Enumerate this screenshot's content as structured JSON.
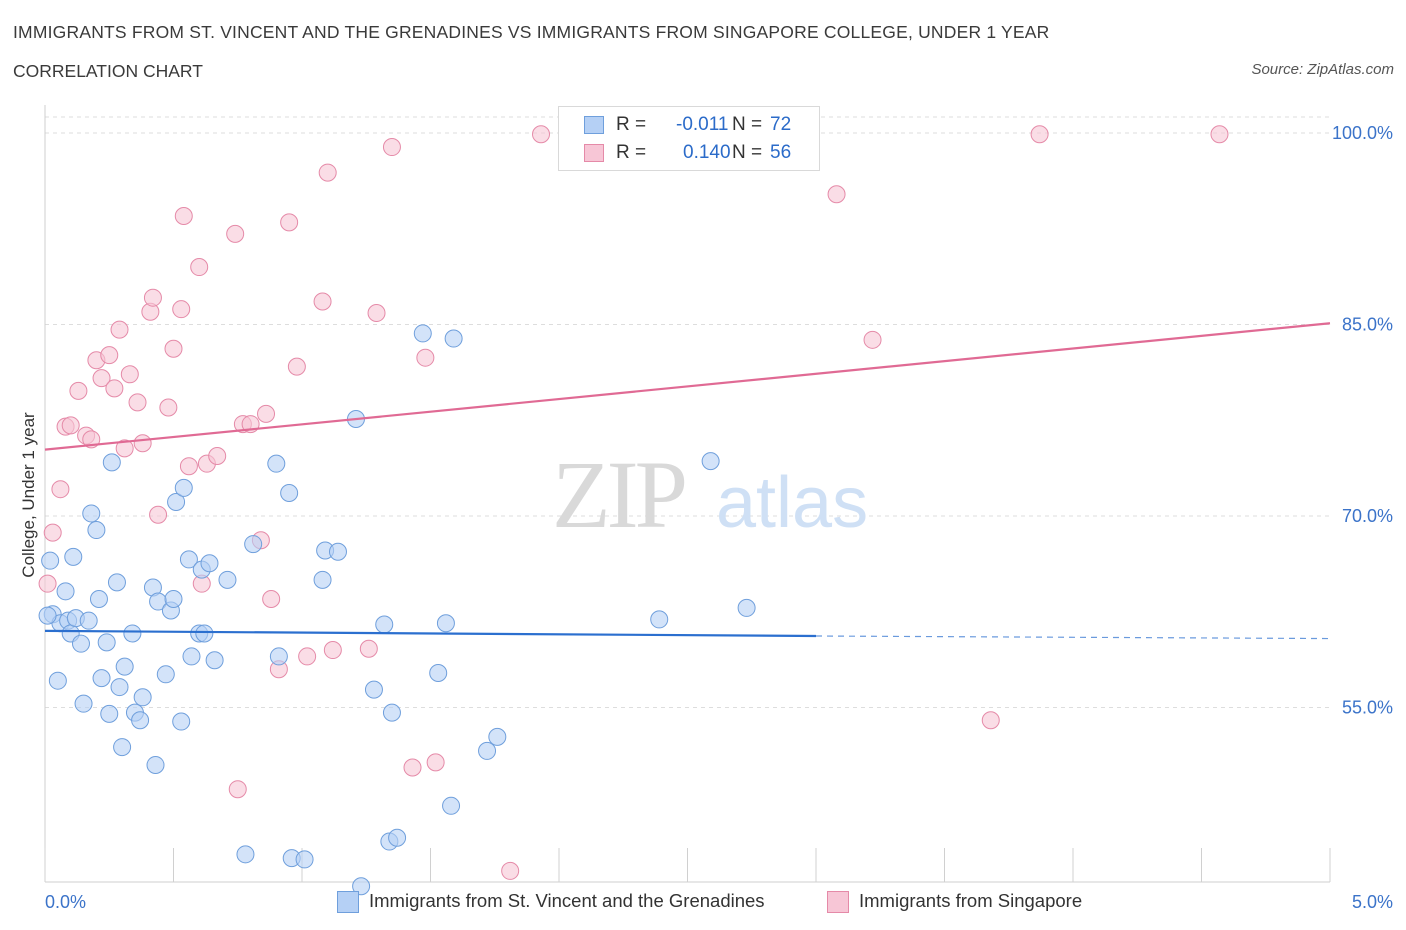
{
  "header": {
    "title": "IMMIGRANTS FROM ST. VINCENT AND THE GRENADINES VS IMMIGRANTS FROM SINGAPORE COLLEGE, UNDER 1 YEAR",
    "subtitle": "CORRELATION CHART",
    "source": "Source: ZipAtlas.com"
  },
  "legend": {
    "r_label": "R =",
    "n_label": "N =",
    "blue": {
      "r": "-0.011",
      "n": "72"
    },
    "pink": {
      "r": "0.140",
      "n": "56"
    }
  },
  "watermark": {
    "zip": "ZIP",
    "atlas": "atlas"
  },
  "colors": {
    "blue_fill": "#b5d0f5",
    "blue_stroke": "#6f9fdc",
    "blue_line": "#2b6fcf",
    "pink_fill": "#f7c6d6",
    "pink_stroke": "#e58aa8",
    "pink_line": "#e06a94",
    "axis_label": "#3b73c9",
    "grid": "#dddddd"
  },
  "chart_data": {
    "type": "scatter",
    "title": "IMMIGRANTS FROM ST. VINCENT AND THE GRENADINES VS IMMIGRANTS FROM SINGAPORE COLLEGE, UNDER 1 YEAR",
    "xlabel": "",
    "ylabel": "College, Under 1 year",
    "x_unit": "%",
    "xlim": [
      0,
      5
    ],
    "ylim": [
      41,
      101
    ],
    "x_tick_labels": [
      "0.0%",
      "5.0%"
    ],
    "y_ticks": [
      55,
      70,
      85,
      100
    ],
    "y_tick_labels": [
      "55.0%",
      "70.0%",
      "85.0%",
      "100.0%"
    ],
    "grid": true,
    "legend_position": "bottom",
    "series": [
      {
        "name": "Immigrants from St. Vincent and the Grenadines",
        "color": "#6f9fdc",
        "trend": {
          "x": [
            0,
            3.0
          ],
          "y": [
            61.0,
            60.6
          ],
          "dashed_to_x": 5.0,
          "dashed_y": 60.4
        },
        "points": [
          [
            0.02,
            66.5
          ],
          [
            0.03,
            62.3
          ],
          [
            0.05,
            57.1
          ],
          [
            0.06,
            61.6
          ],
          [
            0.08,
            64.1
          ],
          [
            0.09,
            61.8
          ],
          [
            0.1,
            60.8
          ],
          [
            0.11,
            66.8
          ],
          [
            0.12,
            62.0
          ],
          [
            0.14,
            60.0
          ],
          [
            0.15,
            55.3
          ],
          [
            0.17,
            61.8
          ],
          [
            0.18,
            70.2
          ],
          [
            0.2,
            68.9
          ],
          [
            0.21,
            63.5
          ],
          [
            0.22,
            57.3
          ],
          [
            0.24,
            60.1
          ],
          [
            0.25,
            54.5
          ],
          [
            0.26,
            74.2
          ],
          [
            0.28,
            64.8
          ],
          [
            0.29,
            56.6
          ],
          [
            0.3,
            51.9
          ],
          [
            0.31,
            58.2
          ],
          [
            0.34,
            60.8
          ],
          [
            0.35,
            54.6
          ],
          [
            0.37,
            54.0
          ],
          [
            0.38,
            55.8
          ],
          [
            0.42,
            64.4
          ],
          [
            0.43,
            50.5
          ],
          [
            0.44,
            63.3
          ],
          [
            0.47,
            57.6
          ],
          [
            0.49,
            62.6
          ],
          [
            0.5,
            63.5
          ],
          [
            0.51,
            71.1
          ],
          [
            0.53,
            53.9
          ],
          [
            0.54,
            72.2
          ],
          [
            0.56,
            66.6
          ],
          [
            0.57,
            59.0
          ],
          [
            0.6,
            60.8
          ],
          [
            0.61,
            65.8
          ],
          [
            0.62,
            60.8
          ],
          [
            0.64,
            66.3
          ],
          [
            0.66,
            58.7
          ],
          [
            0.71,
            65.0
          ],
          [
            0.78,
            43.5
          ],
          [
            0.81,
            67.8
          ],
          [
            0.9,
            74.1
          ],
          [
            0.91,
            59.0
          ],
          [
            0.95,
            71.8
          ],
          [
            0.96,
            43.2
          ],
          [
            1.01,
            43.1
          ],
          [
            1.08,
            65.0
          ],
          [
            1.09,
            67.3
          ],
          [
            1.14,
            67.2
          ],
          [
            1.21,
            77.6
          ],
          [
            1.23,
            41.0
          ],
          [
            1.28,
            56.4
          ],
          [
            1.32,
            61.5
          ],
          [
            1.34,
            44.5
          ],
          [
            1.35,
            54.6
          ],
          [
            1.37,
            44.8
          ],
          [
            1.47,
            84.3
          ],
          [
            1.53,
            57.7
          ],
          [
            1.56,
            61.6
          ],
          [
            1.58,
            47.3
          ],
          [
            1.59,
            83.9
          ],
          [
            1.72,
            51.6
          ],
          [
            1.76,
            52.7
          ],
          [
            2.39,
            61.9
          ],
          [
            2.59,
            74.3
          ],
          [
            2.73,
            62.8
          ],
          [
            0.01,
            62.2
          ]
        ]
      },
      {
        "name": "Immigrants from Singapore",
        "color": "#e58aa8",
        "trend": {
          "x": [
            0,
            5.0
          ],
          "y": [
            75.2,
            85.1
          ]
        },
        "points": [
          [
            0.01,
            64.7
          ],
          [
            0.03,
            68.7
          ],
          [
            0.06,
            72.1
          ],
          [
            0.08,
            77.0
          ],
          [
            0.1,
            77.1
          ],
          [
            0.13,
            79.8
          ],
          [
            0.16,
            76.3
          ],
          [
            0.18,
            76.0
          ],
          [
            0.2,
            82.2
          ],
          [
            0.22,
            80.8
          ],
          [
            0.25,
            82.6
          ],
          [
            0.27,
            80.0
          ],
          [
            0.29,
            84.6
          ],
          [
            0.31,
            75.3
          ],
          [
            0.33,
            81.1
          ],
          [
            0.36,
            78.9
          ],
          [
            0.38,
            75.7
          ],
          [
            0.41,
            86.0
          ],
          [
            0.42,
            87.1
          ],
          [
            0.44,
            70.1
          ],
          [
            0.48,
            78.5
          ],
          [
            0.5,
            83.1
          ],
          [
            0.53,
            86.2
          ],
          [
            0.54,
            93.5
          ],
          [
            0.56,
            73.9
          ],
          [
            0.6,
            89.5
          ],
          [
            0.61,
            64.7
          ],
          [
            0.63,
            74.1
          ],
          [
            0.67,
            74.7
          ],
          [
            0.74,
            92.1
          ],
          [
            0.75,
            48.6
          ],
          [
            0.77,
            77.2
          ],
          [
            0.8,
            77.2
          ],
          [
            0.84,
            68.1
          ],
          [
            0.86,
            78.0
          ],
          [
            0.88,
            63.5
          ],
          [
            0.91,
            58.0
          ],
          [
            0.95,
            93.0
          ],
          [
            0.98,
            81.7
          ],
          [
            1.02,
            59.0
          ],
          [
            1.08,
            86.8
          ],
          [
            1.1,
            96.9
          ],
          [
            1.12,
            59.5
          ],
          [
            1.26,
            59.6
          ],
          [
            1.29,
            85.9
          ],
          [
            1.35,
            98.9
          ],
          [
            1.43,
            50.3
          ],
          [
            1.48,
            82.4
          ],
          [
            1.52,
            50.7
          ],
          [
            1.81,
            42.2
          ],
          [
            1.93,
            99.9
          ],
          [
            3.08,
            95.2
          ],
          [
            3.22,
            83.8
          ],
          [
            3.68,
            54.0
          ],
          [
            3.87,
            99.9
          ],
          [
            4.57,
            99.9
          ]
        ]
      }
    ]
  }
}
